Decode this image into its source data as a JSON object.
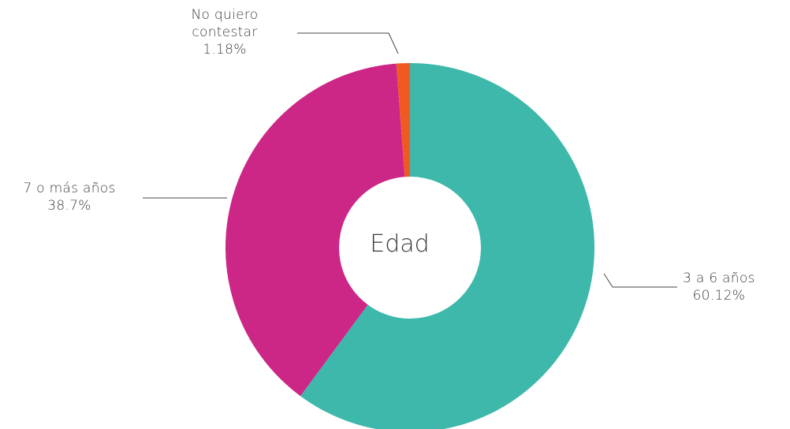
{
  "chart_data": {
    "type": "pie",
    "style": "donut",
    "center_label": "Edad",
    "slices": [
      {
        "name": "3 a 6 años",
        "value": 60.12,
        "label": "60.12%",
        "color": "#3db8ab"
      },
      {
        "name": "7 o más años",
        "value": 38.7,
        "label": "38.7%",
        "color": "#cc2786"
      },
      {
        "name": "No quiero contestar",
        "value": 1.18,
        "label": "1.18%",
        "color": "#f05a22"
      }
    ],
    "labels_text": {
      "s0": [
        "3 a 6 años"
      ],
      "s1": [
        "7 o más años"
      ],
      "s2": [
        "No quiero",
        "contestar"
      ]
    }
  }
}
